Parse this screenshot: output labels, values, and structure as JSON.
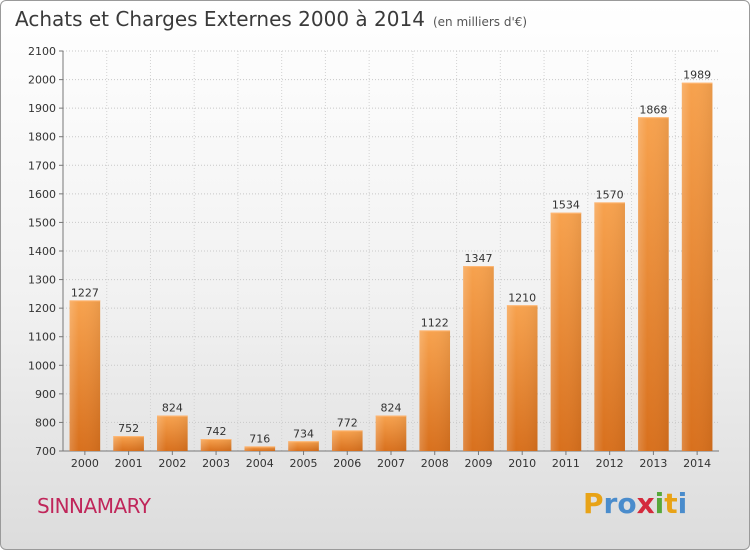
{
  "header": {
    "title": "Achats et Charges Externes 2000 à 2014",
    "subtitle": "(en milliers d'€)"
  },
  "footer": {
    "place": "SINNAMARY",
    "logo": {
      "letters": [
        "P",
        "r",
        "o",
        "x",
        "i",
        "t",
        "i"
      ],
      "colors": [
        "#e8a317",
        "#4a8ccc",
        "#4a8ccc",
        "#d42a3c",
        "#57a83a",
        "#e8a317",
        "#4a8ccc"
      ]
    }
  },
  "chart_data": {
    "type": "bar",
    "categories": [
      "2000",
      "2001",
      "2002",
      "2003",
      "2004",
      "2005",
      "2006",
      "2007",
      "2008",
      "2009",
      "2010",
      "2011",
      "2012",
      "2013",
      "2014"
    ],
    "values": [
      1227,
      752,
      824,
      742,
      716,
      734,
      772,
      824,
      1122,
      1347,
      1210,
      1534,
      1570,
      1868,
      1989
    ],
    "yticks": [
      700,
      800,
      900,
      1000,
      1100,
      1200,
      1300,
      1400,
      1500,
      1600,
      1700,
      1800,
      1900,
      2000,
      2100
    ],
    "ylim": [
      700,
      2100
    ],
    "grid": true,
    "bar_color": "#f0963c",
    "xlabel": "",
    "ylabel": ""
  }
}
